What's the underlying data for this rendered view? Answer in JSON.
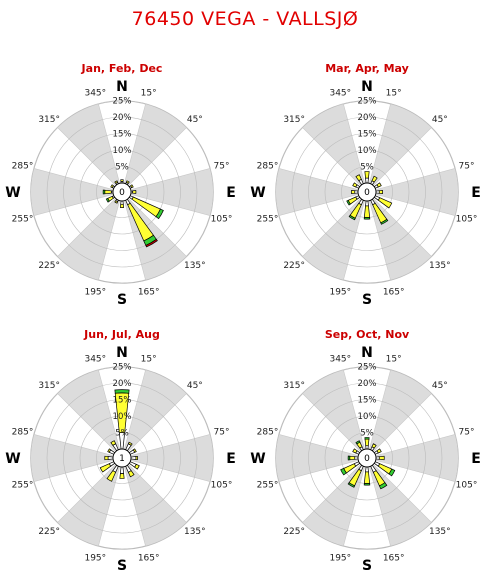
{
  "page": {
    "title": "76450 VEGA - VALLSJØ"
  },
  "chart_data": [
    {
      "type": "wind-rose",
      "title": "Jan, Feb, Dec",
      "calm": "0",
      "ring_labels": [
        "5%",
        "10%",
        "15%",
        "20%",
        "25%"
      ],
      "direction_labels": [
        "N",
        "E",
        "S",
        "W"
      ],
      "degree_labels": [
        "15°",
        "45°",
        "75°",
        "105°",
        "135°",
        "165°",
        "195°",
        "225°",
        "255°",
        "285°",
        "315°",
        "345°"
      ],
      "sectors": [
        0,
        30,
        60,
        90,
        120,
        150,
        180,
        210,
        240,
        270,
        300,
        330
      ],
      "speed_classes": [
        {
          "color": "#ffffff",
          "values": [
            0.5,
            0.5,
            0.5,
            0.5,
            1.0,
            1.5,
            1.0,
            0.5,
            0.5,
            0.5,
            0.5,
            0.5
          ]
        },
        {
          "color": "#ffff33",
          "values": [
            0.5,
            0.5,
            0.5,
            1.0,
            9.0,
            12.0,
            1.0,
            0.5,
            1.5,
            2.0,
            0.5,
            0.5
          ]
        },
        {
          "color": "#33cc33",
          "values": [
            0.0,
            0.0,
            0.0,
            0.0,
            1.0,
            1.5,
            0.0,
            0.0,
            0.5,
            0.5,
            0.0,
            0.0
          ]
        },
        {
          "color": "#cc0000",
          "values": [
            0.0,
            0.0,
            0.0,
            0.0,
            0.0,
            0.5,
            0.0,
            0.0,
            0.0,
            0.0,
            0.0,
            0.0
          ]
        }
      ]
    },
    {
      "type": "wind-rose",
      "title": "Mar, Apr, May",
      "calm": "0",
      "ring_labels": [
        "5%",
        "10%",
        "15%",
        "20%",
        "25%"
      ],
      "direction_labels": [
        "N",
        "E",
        "S",
        "W"
      ],
      "degree_labels": [
        "15°",
        "45°",
        "75°",
        "105°",
        "135°",
        "165°",
        "195°",
        "225°",
        "255°",
        "285°",
        "315°",
        "345°"
      ],
      "sectors": [
        0,
        30,
        60,
        90,
        120,
        150,
        180,
        210,
        240,
        270,
        300,
        330
      ],
      "speed_classes": [
        {
          "color": "#ffffff",
          "values": [
            1.5,
            1.0,
            1.0,
            1.0,
            1.5,
            1.5,
            1.5,
            1.5,
            1.0,
            1.0,
            1.0,
            1.5
          ]
        },
        {
          "color": "#ffff33",
          "values": [
            2.0,
            1.5,
            1.0,
            1.0,
            4.0,
            6.0,
            3.5,
            4.5,
            2.5,
            1.0,
            1.0,
            1.5
          ]
        },
        {
          "color": "#33cc33",
          "values": [
            0.0,
            0.0,
            0.0,
            0.0,
            0.0,
            0.5,
            0.5,
            0.5,
            0.5,
            0.0,
            0.0,
            0.0
          ]
        }
      ]
    },
    {
      "type": "wind-rose",
      "title": "Jun, Jul, Aug",
      "calm": "1",
      "ring_labels": [
        "5%",
        "10%",
        "15%",
        "20%",
        "25%"
      ],
      "direction_labels": [
        "N",
        "E",
        "S",
        "W"
      ],
      "degree_labels": [
        "15°",
        "45°",
        "75°",
        "105°",
        "135°",
        "165°",
        "195°",
        "225°",
        "255°",
        "285°",
        "315°",
        "345°"
      ],
      "sectors": [
        0,
        30,
        60,
        90,
        120,
        150,
        180,
        210,
        240,
        270,
        300,
        330
      ],
      "speed_classes": [
        {
          "color": "#ffffff",
          "values": [
            5.0,
            2.0,
            1.5,
            1.5,
            2.0,
            2.0,
            2.0,
            2.0,
            1.5,
            1.5,
            1.5,
            2.0
          ]
        },
        {
          "color": "#ffff33",
          "values": [
            12.0,
            0.5,
            0.5,
            0.5,
            1.0,
            1.5,
            1.5,
            3.0,
            3.0,
            1.0,
            0.5,
            1.0
          ]
        },
        {
          "color": "#33cc33",
          "values": [
            1.0,
            0.0,
            0.0,
            0.0,
            0.0,
            0.0,
            0.0,
            0.0,
            0.0,
            0.0,
            0.0,
            0.0
          ]
        }
      ]
    },
    {
      "type": "wind-rose",
      "title": "Sep, Oct, Nov",
      "calm": "0",
      "ring_labels": [
        "5%",
        "10%",
        "15%",
        "20%",
        "25%"
      ],
      "direction_labels": [
        "N",
        "E",
        "S",
        "W"
      ],
      "degree_labels": [
        "15°",
        "45°",
        "75°",
        "105°",
        "135°",
        "165°",
        "195°",
        "225°",
        "255°",
        "285°",
        "315°",
        "345°"
      ],
      "sectors": [
        0,
        30,
        60,
        90,
        120,
        150,
        180,
        210,
        240,
        270,
        300,
        330
      ],
      "speed_classes": [
        {
          "color": "#ffffff",
          "values": [
            1.0,
            1.0,
            1.0,
            1.0,
            1.5,
            2.0,
            1.5,
            1.5,
            1.5,
            1.0,
            1.0,
            1.0
          ]
        },
        {
          "color": "#ffff33",
          "values": [
            2.0,
            1.0,
            1.0,
            1.5,
            4.0,
            4.5,
            3.5,
            5.0,
            3.5,
            1.5,
            1.0,
            1.5
          ]
        },
        {
          "color": "#33cc33",
          "values": [
            0.5,
            0.0,
            0.0,
            0.0,
            1.0,
            1.0,
            0.5,
            0.5,
            1.0,
            0.5,
            0.0,
            0.5
          ]
        }
      ]
    }
  ]
}
